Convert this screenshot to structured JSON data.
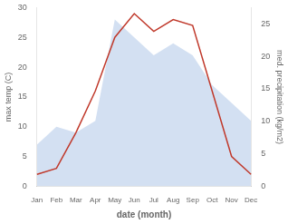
{
  "chart_data": {
    "type": "line",
    "categories": [
      "Jan",
      "Feb",
      "Mar",
      "Apr",
      "May",
      "Jun",
      "Jul",
      "Aug",
      "Sep",
      "Oct",
      "Nov",
      "Dec"
    ],
    "series": [
      {
        "type": "area",
        "color": "#aec6e8",
        "values": [
          7,
          10,
          9,
          11,
          28,
          25,
          22,
          24,
          22,
          17,
          14,
          11
        ],
        "axis": "y"
      },
      {
        "type": "line",
        "color": "#c0392b",
        "values": [
          2,
          3,
          9,
          16,
          25,
          29,
          26,
          28,
          27,
          16,
          5,
          2
        ],
        "axis": "y"
      }
    ],
    "xlabel": "date (month)",
    "ylabel": "max temp (C)",
    "y2label": "med. precipitation (kg/m2)",
    "ylim": [
      0,
      30
    ],
    "yticks": [
      0,
      5,
      10,
      15,
      20,
      25,
      30
    ],
    "y2lim": [
      0,
      27.5
    ],
    "y2ticks": [
      0,
      5,
      10,
      15,
      20,
      25
    ],
    "grid": false
  }
}
